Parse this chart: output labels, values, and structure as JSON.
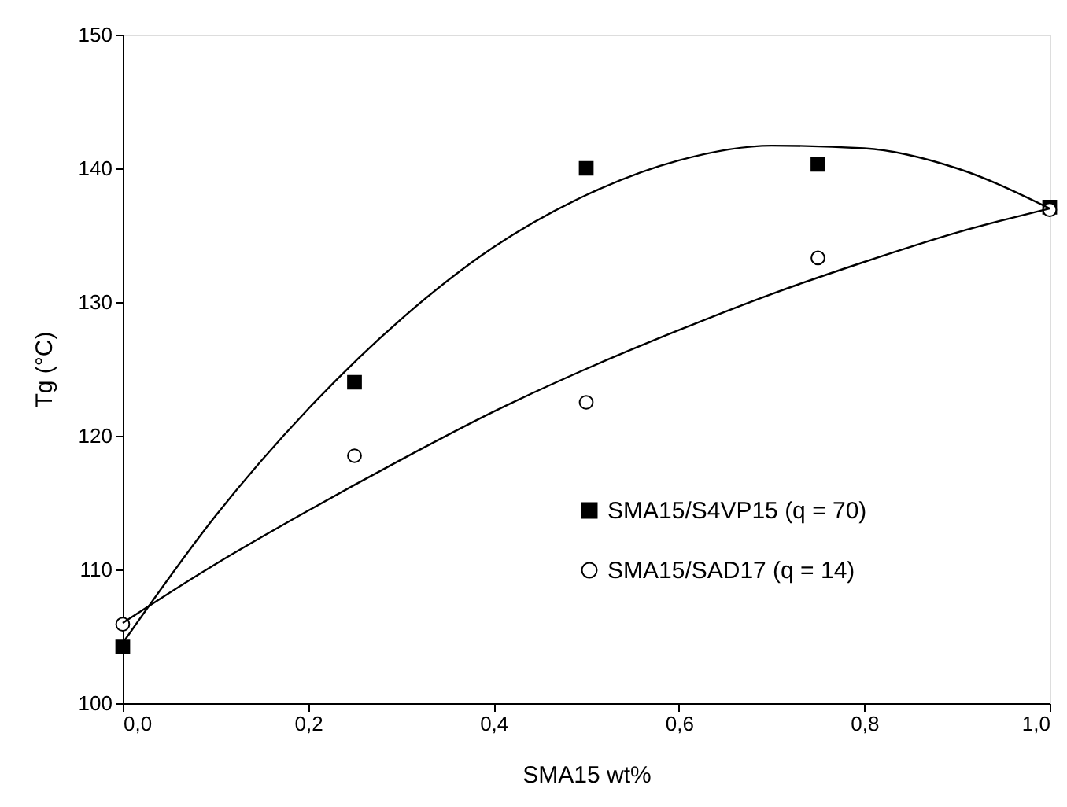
{
  "chart_data": {
    "type": "scatter",
    "xlabel": "SMA15  wt%",
    "ylabel": "Tg (°C)",
    "xlim": [
      0,
      1
    ],
    "ylim": [
      100,
      150
    ],
    "xticks": [
      {
        "value": 0,
        "label": "0,0"
      },
      {
        "value": 0.2,
        "label": "0,2"
      },
      {
        "value": 0.4,
        "label": "0,4"
      },
      {
        "value": 0.6,
        "label": "0,6"
      },
      {
        "value": 0.8,
        "label": "0,8"
      },
      {
        "value": 1,
        "label": "1,0"
      }
    ],
    "yticks": [
      100,
      110,
      120,
      130,
      140,
      150
    ],
    "grid": false,
    "legend": "bottom right",
    "series": [
      {
        "name": "SMA15/S4VP15 (q = 70)",
        "marker": "square",
        "color": "#000000",
        "x": [
          0,
          0.25,
          0.5,
          0.75,
          1.0
        ],
        "values": [
          104.2,
          124.0,
          140.0,
          140.3,
          137.1
        ]
      },
      {
        "name": "SMA15/SAD17  (q = 14)",
        "marker": "circle",
        "color": "#000000",
        "x": [
          0,
          0.25,
          0.5,
          0.75,
          1.0
        ],
        "values": [
          105.9,
          118.5,
          122.5,
          133.3,
          136.9
        ]
      },
      {
        "type": "line",
        "color": "#000000",
        "x": [
          0,
          0.1,
          0.2,
          0.3,
          0.4,
          0.5,
          0.6,
          0.7,
          0.8,
          0.9,
          1.0
        ],
        "values": [
          104.5,
          114.0,
          122.0,
          128.7,
          134.1,
          138.0,
          140.6,
          141.7,
          141.5,
          140.0,
          137.0
        ]
      },
      {
        "type": "line",
        "color": "#000000",
        "x": [
          0,
          0.1,
          0.2,
          0.3,
          0.4,
          0.5,
          0.6,
          0.7,
          0.8,
          0.9,
          1.0
        ],
        "values": [
          106.0,
          110.4,
          114.4,
          118.2,
          121.8,
          125.0,
          127.9,
          130.6,
          133.0,
          135.2,
          137.0
        ]
      }
    ]
  }
}
